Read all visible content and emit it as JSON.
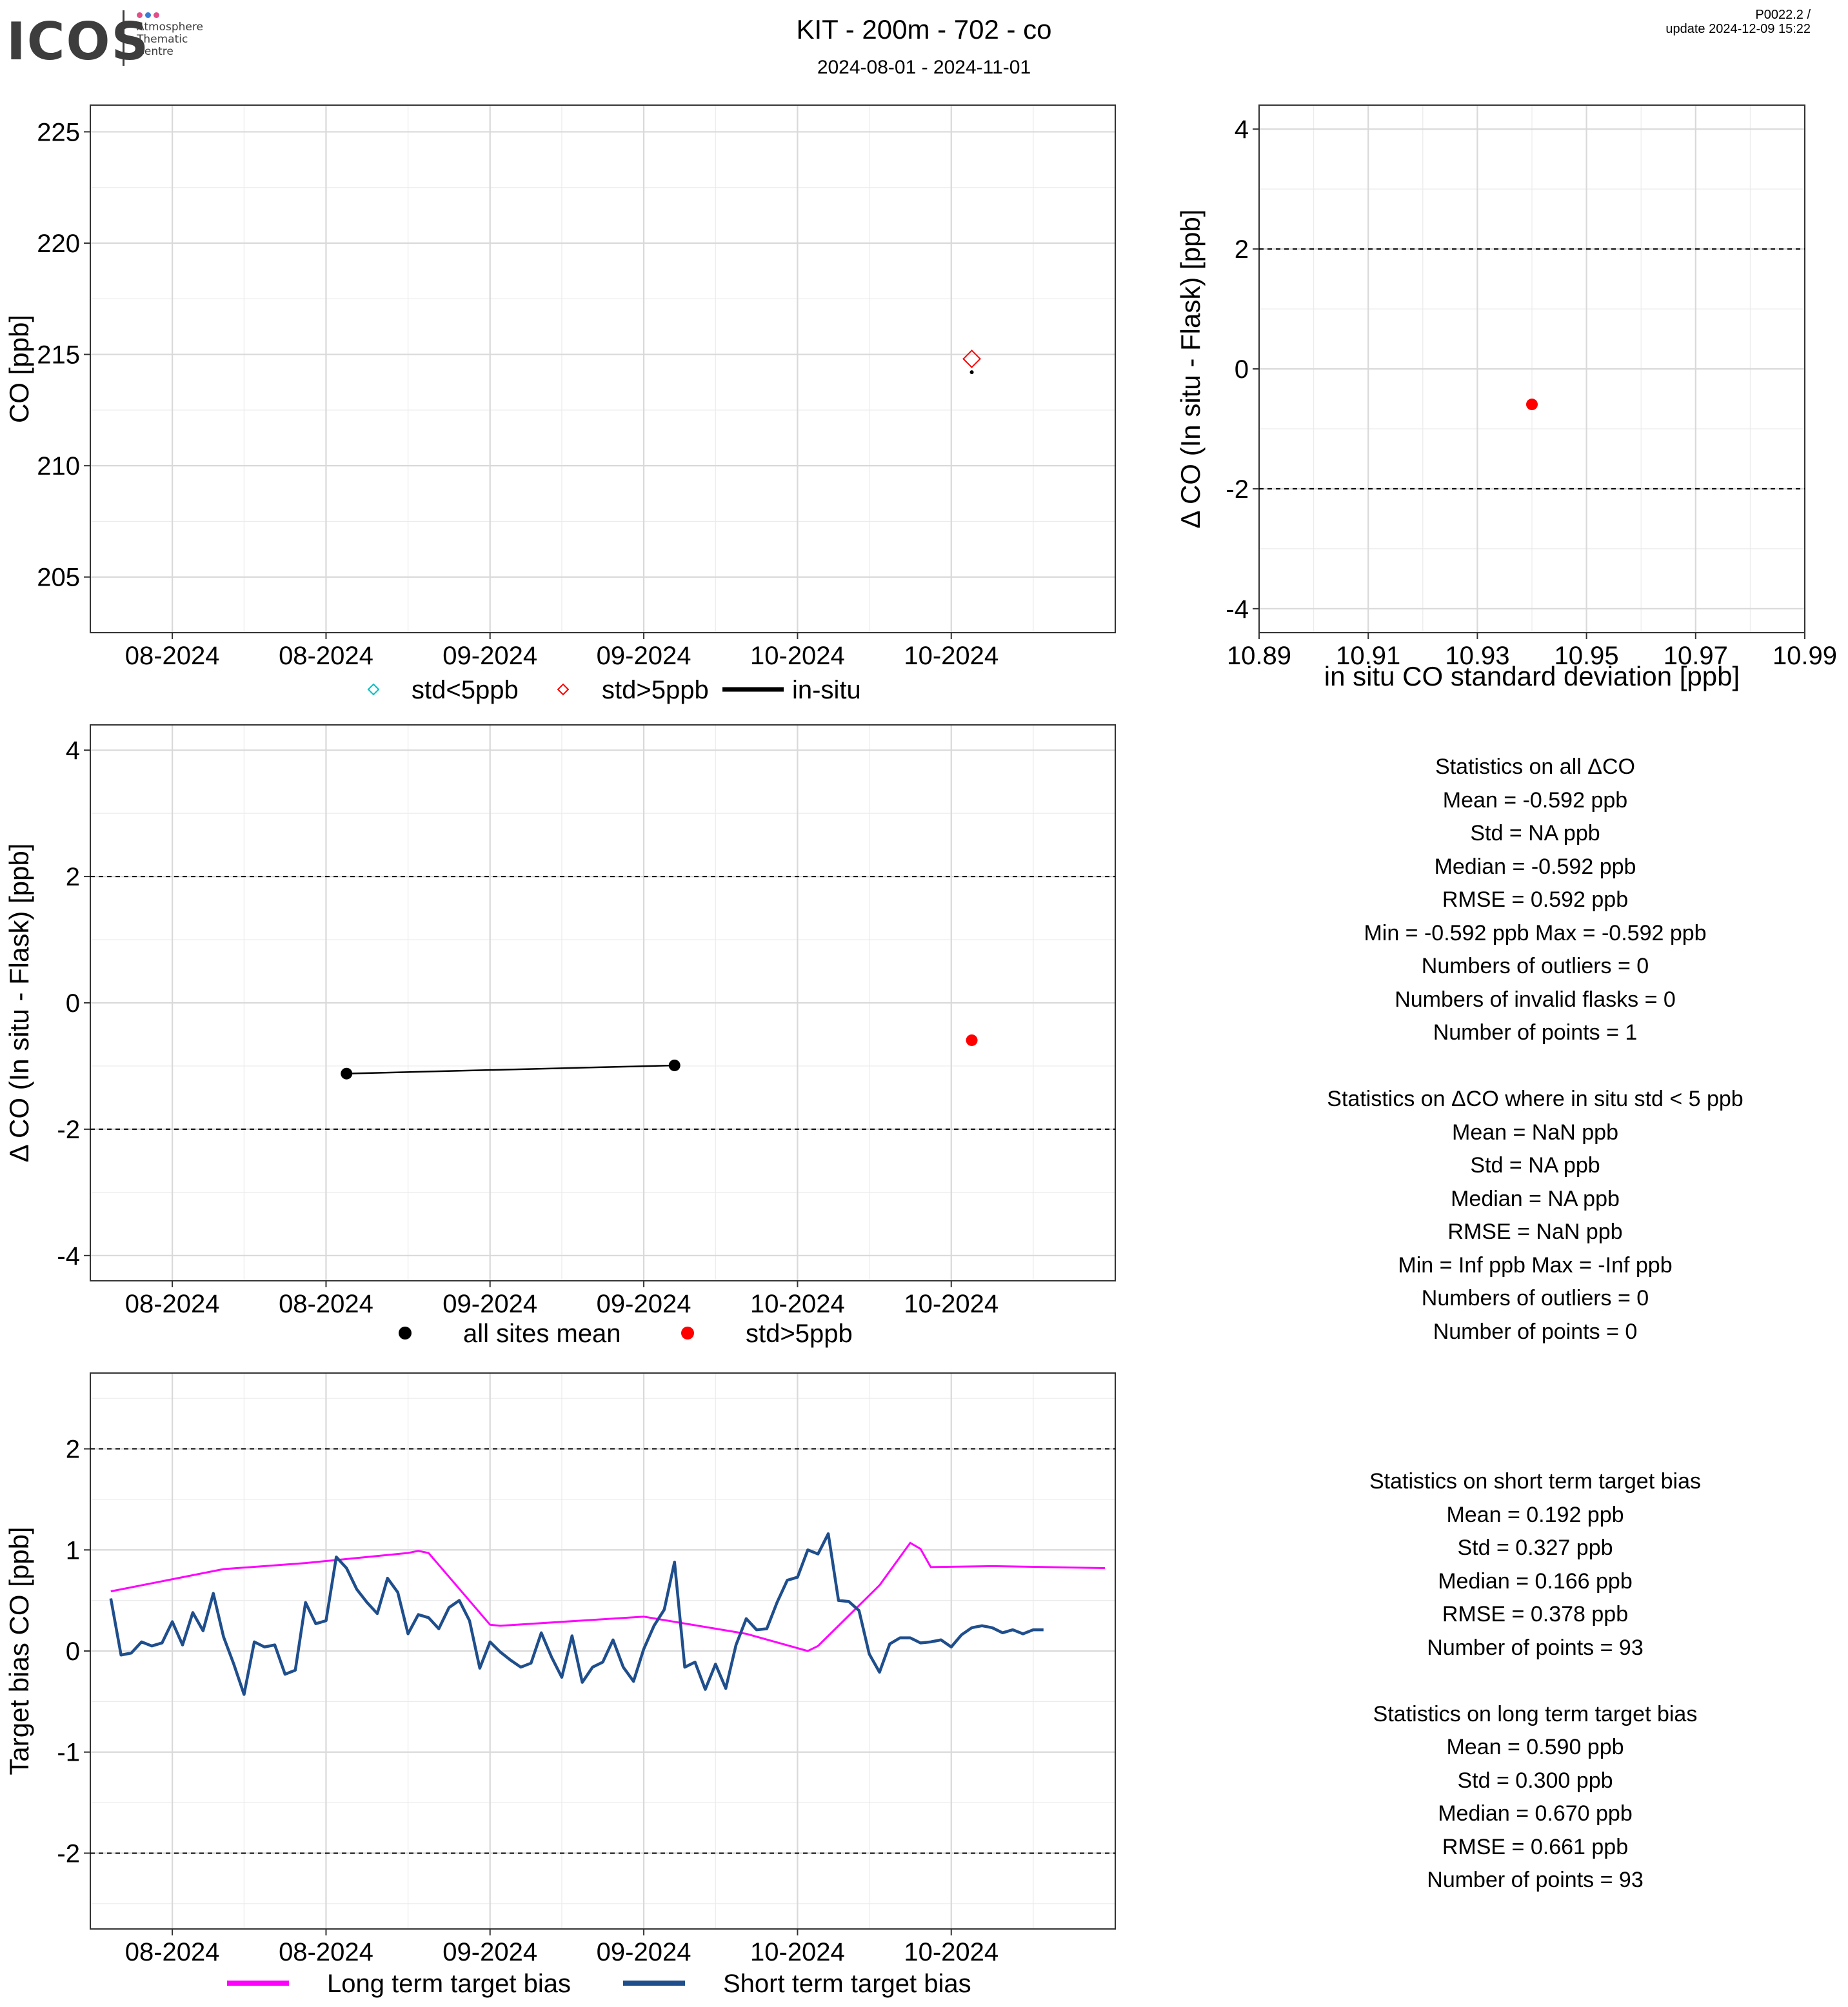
{
  "header": {
    "logo_text": "ICOS",
    "logo_subtitle": [
      "Atmosphere",
      "Thematic",
      "Centre"
    ],
    "logo_dot_colors": [
      "#e24f8a",
      "#3a7dd6",
      "#e24f8a"
    ],
    "title": "KIT - 200m - 702 - co",
    "subtitle": "2024-08-01 - 2024-11-01",
    "version": "P0022.2 /",
    "update": "update  2024-12-09 15:22"
  },
  "colors": {
    "std_lt5": "#00bfc4",
    "std_gt5": "#ff0000",
    "insitu": "#000000",
    "long_term": "#ff00ff",
    "short_term": "#1f4e8c",
    "grid_major": "#d9d9d9",
    "grid_minor": "#ebebeb"
  },
  "chart_data": [
    {
      "type": "scatter",
      "panel": "timeseries",
      "xlabel": "",
      "ylabel": "CO [ppb]",
      "x_ticks": [
        "08-2024",
        "08-2024",
        "09-2024",
        "09-2024",
        "10-2024",
        "10-2024"
      ],
      "x_range": [
        "2024-07-24",
        "2024-11-01"
      ],
      "ylim": [
        202.5,
        226.2
      ],
      "y_ticks": [
        205,
        210,
        215,
        220,
        225
      ],
      "series": [
        {
          "name": "std<5ppb",
          "marker": "open-diamond",
          "points": []
        },
        {
          "name": "std>5ppb",
          "marker": "open-diamond",
          "points": [
            {
              "x": "2024-10-18",
              "y": 214.8
            }
          ]
        },
        {
          "name": "in-situ",
          "marker": "line",
          "points": [
            {
              "x": "2024-10-18",
              "y": 214.2
            }
          ]
        }
      ],
      "legend": {
        "position": "bottom",
        "items": [
          "std<5ppb",
          "std>5ppb",
          "in-situ"
        ]
      }
    },
    {
      "type": "scatter",
      "panel": "delta_vs_std",
      "xlabel": "in situ CO standard deviation [ppb]",
      "ylabel": "Δ CO (In situ - Flask) [ppb]",
      "xlim": [
        10.89,
        10.99
      ],
      "x_ticks": [
        "10.89",
        "10.91",
        "10.93",
        "10.95",
        "10.97",
        "10.99"
      ],
      "ylim": [
        -4.4,
        4.4
      ],
      "y_ticks": [
        -4,
        -2,
        0,
        2,
        4
      ],
      "hlines": [
        2,
        -2
      ],
      "points": [
        {
          "x": 10.94,
          "y": -0.592
        }
      ]
    },
    {
      "type": "scatter",
      "panel": "delta_timeseries",
      "xlabel": "",
      "ylabel": "Δ CO (In situ - Flask) [ppb]",
      "x_ticks": [
        "08-2024",
        "08-2024",
        "09-2024",
        "09-2024",
        "10-2024",
        "10-2024"
      ],
      "x_range": [
        "2024-07-24",
        "2024-11-01"
      ],
      "ylim": [
        -4.4,
        4.4
      ],
      "y_ticks": [
        -4,
        -2,
        0,
        2,
        4
      ],
      "hlines": [
        2,
        -2
      ],
      "series": [
        {
          "name": "all sites mean",
          "points": [
            {
              "x": "2024-08-18",
              "y": -1.12
            },
            {
              "x": "2024-09-19",
              "y": -0.99
            }
          ]
        },
        {
          "name": "std>5ppb",
          "points": [
            {
              "x": "2024-10-18",
              "y": -0.592
            }
          ]
        }
      ],
      "legend": {
        "position": "bottom",
        "items": [
          "all sites mean",
          "std>5ppb"
        ]
      }
    },
    {
      "type": "line",
      "panel": "target_bias",
      "xlabel": "",
      "ylabel": "Target bias CO [ppb]",
      "x_ticks": [
        "08-2024",
        "08-2024",
        "09-2024",
        "09-2024",
        "10-2024",
        "10-2024"
      ],
      "x_range": [
        "2024-07-24",
        "2024-11-01"
      ],
      "ylim": [
        -2.75,
        2.75
      ],
      "y_ticks": [
        -2,
        -1,
        0,
        1,
        2
      ],
      "hlines": [
        2,
        -2
      ],
      "series": [
        {
          "name": "Long term target bias",
          "points": [
            [
              "2024-07-26",
              0.59
            ],
            [
              "2024-08-06",
              0.81
            ],
            [
              "2024-08-10",
              0.84
            ],
            [
              "2024-08-14",
              0.87
            ],
            [
              "2024-08-20",
              0.93
            ],
            [
              "2024-08-24",
              0.97
            ],
            [
              "2024-08-25",
              0.99
            ],
            [
              "2024-08-26",
              0.97
            ],
            [
              "2024-09-01",
              0.26
            ],
            [
              "2024-09-02",
              0.25
            ],
            [
              "2024-09-16",
              0.34
            ],
            [
              "2024-09-26",
              0.17
            ],
            [
              "2024-10-02",
              0.0
            ],
            [
              "2024-10-03",
              0.05
            ],
            [
              "2024-10-09",
              0.65
            ],
            [
              "2024-10-12",
              1.07
            ],
            [
              "2024-10-13",
              1.01
            ],
            [
              "2024-10-14",
              0.83
            ],
            [
              "2024-10-20",
              0.84
            ],
            [
              "2024-10-31",
              0.82
            ]
          ]
        },
        {
          "name": "Short term target bias",
          "points": [
            [
              "2024-07-26",
              0.52
            ],
            [
              "2024-07-27",
              -0.04
            ],
            [
              "2024-07-28",
              -0.02
            ],
            [
              "2024-07-29",
              0.09
            ],
            [
              "2024-07-30",
              0.05
            ],
            [
              "2024-07-31",
              0.08
            ],
            [
              "2024-08-01",
              0.29
            ],
            [
              "2024-08-02",
              0.06
            ],
            [
              "2024-08-03",
              0.38
            ],
            [
              "2024-08-04",
              0.2
            ],
            [
              "2024-08-05",
              0.57
            ],
            [
              "2024-08-06",
              0.14
            ],
            [
              "2024-08-07",
              -0.13
            ],
            [
              "2024-08-08",
              -0.43
            ],
            [
              "2024-08-09",
              0.09
            ],
            [
              "2024-08-10",
              0.04
            ],
            [
              "2024-08-11",
              0.06
            ],
            [
              "2024-08-12",
              -0.23
            ],
            [
              "2024-08-13",
              -0.19
            ],
            [
              "2024-08-14",
              0.48
            ],
            [
              "2024-08-15",
              0.27
            ],
            [
              "2024-08-16",
              0.3
            ],
            [
              "2024-08-17",
              0.93
            ],
            [
              "2024-08-18",
              0.82
            ],
            [
              "2024-08-19",
              0.61
            ],
            [
              "2024-08-20",
              0.48
            ],
            [
              "2024-08-21",
              0.37
            ],
            [
              "2024-08-22",
              0.72
            ],
            [
              "2024-08-23",
              0.58
            ],
            [
              "2024-08-24",
              0.17
            ],
            [
              "2024-08-25",
              0.36
            ],
            [
              "2024-08-26",
              0.33
            ],
            [
              "2024-08-27",
              0.22
            ],
            [
              "2024-08-28",
              0.43
            ],
            [
              "2024-08-29",
              0.5
            ],
            [
              "2024-08-30",
              0.3
            ],
            [
              "2024-08-31",
              -0.17
            ],
            [
              "2024-09-01",
              0.09
            ],
            [
              "2024-09-02",
              -0.01
            ],
            [
              "2024-09-03",
              -0.09
            ],
            [
              "2024-09-04",
              -0.16
            ],
            [
              "2024-09-05",
              -0.12
            ],
            [
              "2024-09-06",
              0.18
            ],
            [
              "2024-09-07",
              -0.06
            ],
            [
              "2024-09-08",
              -0.26
            ],
            [
              "2024-09-09",
              0.15
            ],
            [
              "2024-09-10",
              -0.31
            ],
            [
              "2024-09-11",
              -0.16
            ],
            [
              "2024-09-12",
              -0.11
            ],
            [
              "2024-09-13",
              0.11
            ],
            [
              "2024-09-14",
              -0.16
            ],
            [
              "2024-09-15",
              -0.3
            ],
            [
              "2024-09-16",
              0.02
            ],
            [
              "2024-09-17",
              0.25
            ],
            [
              "2024-09-18",
              0.41
            ],
            [
              "2024-09-19",
              0.88
            ],
            [
              "2024-09-20",
              -0.16
            ],
            [
              "2024-09-21",
              -0.11
            ],
            [
              "2024-09-22",
              -0.38
            ],
            [
              "2024-09-23",
              -0.13
            ],
            [
              "2024-09-24",
              -0.37
            ],
            [
              "2024-09-25",
              0.06
            ],
            [
              "2024-09-26",
              0.32
            ],
            [
              "2024-09-27",
              0.21
            ],
            [
              "2024-09-28",
              0.22
            ],
            [
              "2024-09-29",
              0.48
            ],
            [
              "2024-09-30",
              0.7
            ],
            [
              "2024-10-01",
              0.73
            ],
            [
              "2024-10-02",
              1.0
            ],
            [
              "2024-10-03",
              0.96
            ],
            [
              "2024-10-04",
              1.16
            ],
            [
              "2024-10-05",
              0.5
            ],
            [
              "2024-10-06",
              0.49
            ],
            [
              "2024-10-07",
              0.4
            ],
            [
              "2024-10-08",
              -0.03
            ],
            [
              "2024-10-09",
              -0.21
            ],
            [
              "2024-10-10",
              0.07
            ],
            [
              "2024-10-11",
              0.13
            ],
            [
              "2024-10-12",
              0.13
            ],
            [
              "2024-10-13",
              0.08
            ],
            [
              "2024-10-14",
              0.09
            ],
            [
              "2024-10-15",
              0.11
            ],
            [
              "2024-10-16",
              0.04
            ],
            [
              "2024-10-17",
              0.16
            ],
            [
              "2024-10-18",
              0.23
            ],
            [
              "2024-10-19",
              0.25
            ],
            [
              "2024-10-20",
              0.23
            ],
            [
              "2024-10-21",
              0.18
            ],
            [
              "2024-10-22",
              0.21
            ],
            [
              "2024-10-23",
              0.17
            ],
            [
              "2024-10-24",
              0.21
            ],
            [
              "2024-10-25",
              0.21
            ]
          ]
        }
      ],
      "legend": {
        "position": "bottom",
        "items": [
          "Long term target bias",
          "Short term target bias"
        ]
      }
    }
  ],
  "stats_top": {
    "lines": [
      "Statistics on all ΔCO",
      "Mean =  -0.592 ppb",
      "Std =  NA ppb",
      "Median =  -0.592 ppb",
      "RMSE =  0.592 ppb",
      "Min =  -0.592 ppb Max =  -0.592 ppb",
      "Numbers of outliers =  0",
      "Numbers of invalid flasks =  0",
      "Number of points =  1",
      "",
      "Statistics on ΔCO where in situ std < 5 ppb",
      "Mean =  NaN ppb",
      "Std =  NA ppb",
      "Median =  NA ppb",
      "RMSE =  NaN ppb",
      "Min =  Inf ppb Max =  -Inf ppb",
      "Numbers of outliers =  0",
      "Number of points =  0"
    ]
  },
  "stats_bottom": {
    "lines": [
      "Statistics on short term target bias",
      "Mean =  0.192 ppb",
      "Std =  0.327 ppb",
      "Median =  0.166 ppb",
      "RMSE =  0.378 ppb",
      "Number of points =  93",
      "",
      "Statistics on long term target bias",
      "Mean =  0.590 ppb",
      "Std =  0.300 ppb",
      "Median =  0.670 ppb",
      "RMSE =  0.661 ppb",
      "Number of points =  93"
    ]
  }
}
